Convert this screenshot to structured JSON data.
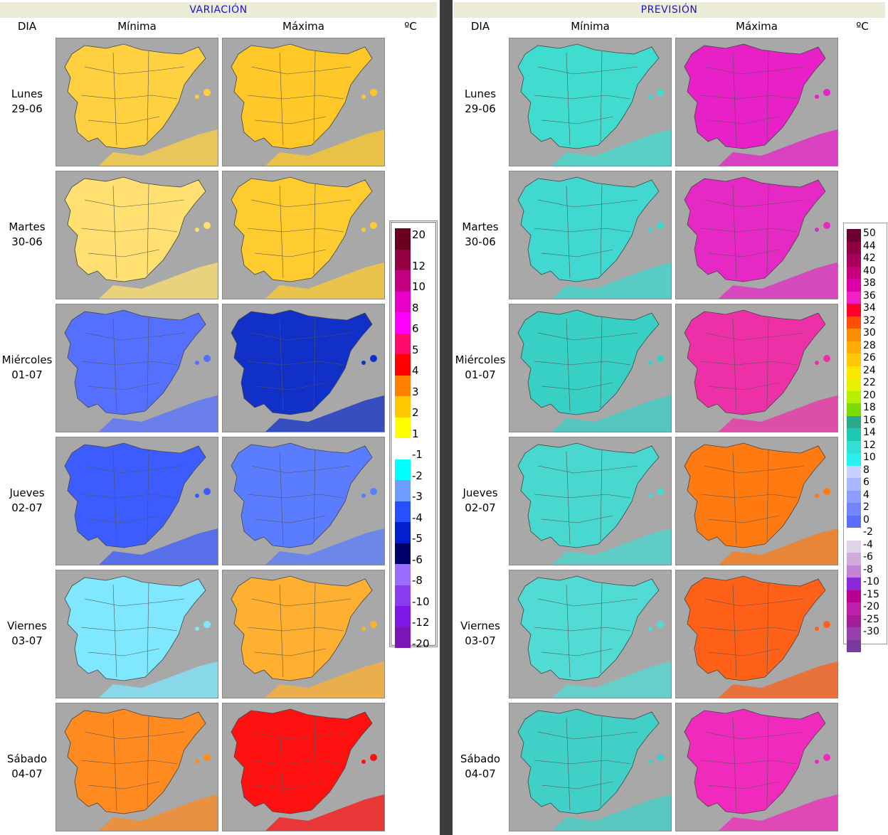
{
  "left": {
    "title": "VARIACIÓN",
    "col_dia": "DIA",
    "col_min": "Mínima",
    "col_max": "Máxima",
    "unit": "ºC"
  },
  "right": {
    "title": "PREVISIÓN",
    "col_dia": "DIA",
    "col_min": "Mínima",
    "col_max": "Máxima",
    "unit": "ºC"
  },
  "days": [
    {
      "name": "Lunes",
      "date": "29-06"
    },
    {
      "name": "Martes",
      "date": "30-06"
    },
    {
      "name": "Miércoles",
      "date": "01-07"
    },
    {
      "name": "Jueves",
      "date": "02-07"
    },
    {
      "name": "Viernes",
      "date": "03-07"
    },
    {
      "name": "Sábado",
      "date": "04-07"
    }
  ],
  "variation_legend": [
    {
      "label": "20",
      "color": "#6b0020"
    },
    {
      "label": "12",
      "color": "#930041"
    },
    {
      "label": "10",
      "color": "#c30080"
    },
    {
      "label": "8",
      "color": "#e600c8"
    },
    {
      "label": "6",
      "color": "#ff00ff"
    },
    {
      "label": "5",
      "color": "#ff0a6a"
    },
    {
      "label": "4",
      "color": "#ff0000"
    },
    {
      "label": "3",
      "color": "#ff8000"
    },
    {
      "label": "2",
      "color": "#ffc800"
    },
    {
      "label": "1",
      "color": "#ffff00"
    },
    {
      "label": "-1",
      "color": "#ffffff"
    },
    {
      "label": "-2",
      "color": "#00ffff"
    },
    {
      "label": "-3",
      "color": "#6e9cff"
    },
    {
      "label": "-4",
      "color": "#2450ff"
    },
    {
      "label": "-5",
      "color": "#0020d0"
    },
    {
      "label": "-6",
      "color": "#00006b"
    },
    {
      "label": "-8",
      "color": "#9a6cff"
    },
    {
      "label": "-10",
      "color": "#8a3cf0"
    },
    {
      "label": "-12",
      "color": "#7d18e6"
    },
    {
      "label": "-20",
      "color": "#7b15b8"
    }
  ],
  "forecast_legend": [
    {
      "label": "50",
      "color": "#6b0030"
    },
    {
      "label": "44",
      "color": "#8e0045"
    },
    {
      "label": "42",
      "color": "#a8005a"
    },
    {
      "label": "40",
      "color": "#c8007d"
    },
    {
      "label": "38",
      "color": "#e000a8"
    },
    {
      "label": "36",
      "color": "#f020c8"
    },
    {
      "label": "34",
      "color": "#ff0028"
    },
    {
      "label": "32",
      "color": "#ff5000"
    },
    {
      "label": "30",
      "color": "#ff8c00"
    },
    {
      "label": "28",
      "color": "#ffaa00"
    },
    {
      "label": "26",
      "color": "#ffc800"
    },
    {
      "label": "24",
      "color": "#ffe600"
    },
    {
      "label": "22",
      "color": "#e6f000"
    },
    {
      "label": "20",
      "color": "#b4f000"
    },
    {
      "label": "18",
      "color": "#78dc00"
    },
    {
      "label": "16",
      "color": "#2aa88c"
    },
    {
      "label": "14",
      "color": "#20c8b0"
    },
    {
      "label": "12",
      "color": "#30e0d0"
    },
    {
      "label": "10",
      "color": "#28f0f0"
    },
    {
      "label": "8",
      "color": "#c8d2ff"
    },
    {
      "label": "6",
      "color": "#aab8ff"
    },
    {
      "label": "4",
      "color": "#8c9cff"
    },
    {
      "label": "2",
      "color": "#7486ff"
    },
    {
      "label": "0",
      "color": "#5a6eff"
    },
    {
      "label": "-2",
      "color": "#ffffff"
    },
    {
      "label": "-4",
      "color": "#e2d2e6"
    },
    {
      "label": "-6",
      "color": "#d2aade"
    },
    {
      "label": "-8",
      "color": "#c382d6"
    },
    {
      "label": "-10",
      "color": "#8c28dc"
    },
    {
      "label": "-15",
      "color": "#b4008c"
    },
    {
      "label": "-20",
      "color": "#be1eaa"
    },
    {
      "label": "-25",
      "color": "#a01e96"
    },
    {
      "label": "-30",
      "color": "#9640b4"
    },
    {
      "label": "",
      "color": "#7a3a9a"
    }
  ],
  "map_fills": {
    "var_min": [
      "#ffd040",
      "#ffe070",
      "#5570ff",
      "#3c5cff",
      "#7fe8ff",
      "#ff8a20"
    ],
    "var_max": [
      "#ffc828",
      "#ffcc30",
      "#1030c8",
      "#5a7cff",
      "#ffb030",
      "#ff1010"
    ],
    "fc_min": [
      "#40dcd0",
      "#40d8d0",
      "#38d0c4",
      "#48d8d0",
      "#50dcd4",
      "#40d0c8"
    ],
    "fc_max": [
      "#e820c8",
      "#e628c4",
      "#ee30a8",
      "#ff7a10",
      "#ff6018",
      "#f02abc"
    ]
  }
}
